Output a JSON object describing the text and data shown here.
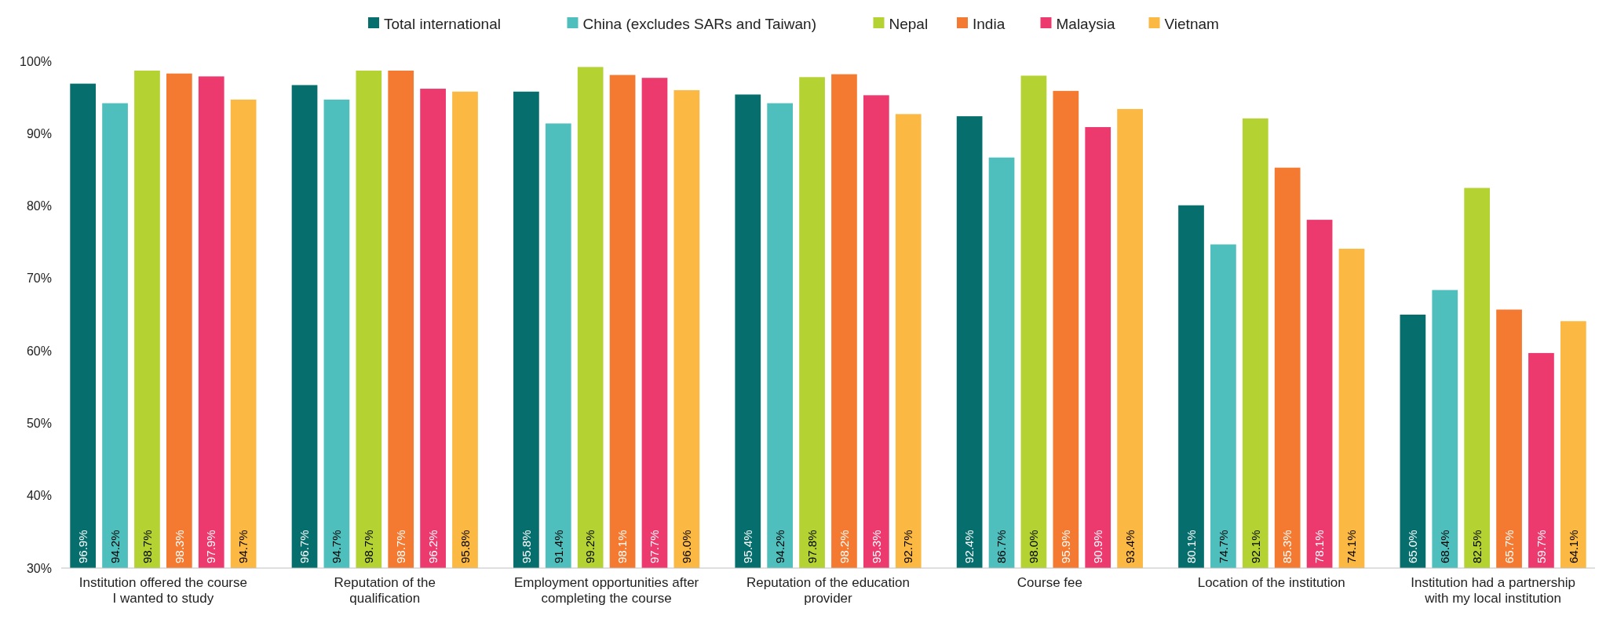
{
  "chart_data": {
    "type": "bar",
    "categories": [
      "Institution offered the course I wanted to study",
      "Reputation of the qualification",
      "Employment opportunities after completing the course",
      "Reputation of the education provider",
      "Course fee",
      "Location of the institution",
      "Institution had a partnership with my local institution"
    ],
    "series": [
      {
        "name": "Total international",
        "color": "#066f6d",
        "values": [
          96.9,
          96.7,
          95.8,
          95.4,
          92.4,
          80.1,
          65.0
        ],
        "value_labels": [
          "96.9%",
          "96.7%",
          "95.8%",
          "95.4%",
          "92.4%",
          "80.1%",
          "65.0%"
        ]
      },
      {
        "name": "China (excludes SARs and Taiwan)",
        "color": "#4fbfbd",
        "values": [
          94.2,
          94.7,
          91.4,
          94.2,
          86.7,
          74.7,
          68.4
        ],
        "value_labels": [
          "94.2%",
          "94.7%",
          "91.4%",
          "94.2%",
          "86.7%",
          "74.7%",
          "68.4%"
        ]
      },
      {
        "name": "Nepal",
        "color": "#b4d232",
        "values": [
          98.7,
          98.7,
          99.2,
          97.8,
          98.0,
          92.1,
          82.5
        ],
        "value_labels": [
          "98.7%",
          "98.7%",
          "99.2%",
          "97.8%",
          "98.0%",
          "92.1%",
          "82.5%"
        ]
      },
      {
        "name": "India",
        "color": "#f37a30",
        "values": [
          98.3,
          98.7,
          98.1,
          98.2,
          95.9,
          85.3,
          65.7
        ],
        "value_labels": [
          "98.3%",
          "98.7%",
          "98.1%",
          "98.2%",
          "95.9%",
          "85.3%",
          "65.7%"
        ]
      },
      {
        "name": "Malaysia",
        "color": "#ec3a6f",
        "values": [
          97.9,
          96.2,
          97.7,
          95.3,
          90.9,
          78.1,
          59.7
        ],
        "value_labels": [
          "97.9%",
          "96.2%",
          "97.7%",
          "95.3%",
          "90.9%",
          "78.1%",
          "59.7%"
        ]
      },
      {
        "name": "Vietnam",
        "color": "#fbb843",
        "values": [
          94.7,
          95.8,
          96.0,
          92.7,
          93.4,
          74.1,
          64.1
        ],
        "value_labels": [
          "94.7%",
          "95.8%",
          "96.0%",
          "92.7%",
          "93.4%",
          "74.1%",
          "64.1%"
        ]
      }
    ],
    "ylim": [
      30,
      100
    ],
    "yticks": [
      {
        "value": 30,
        "label": "30%"
      },
      {
        "value": 40,
        "label": "40%"
      },
      {
        "value": 50,
        "label": "50%"
      },
      {
        "value": 60,
        "label": "60%"
      },
      {
        "value": 70,
        "label": "70%"
      },
      {
        "value": 80,
        "label": "80%"
      },
      {
        "value": 90,
        "label": "90%"
      },
      {
        "value": 100,
        "label": "100%"
      }
    ],
    "legend": "top",
    "grid": false
  }
}
